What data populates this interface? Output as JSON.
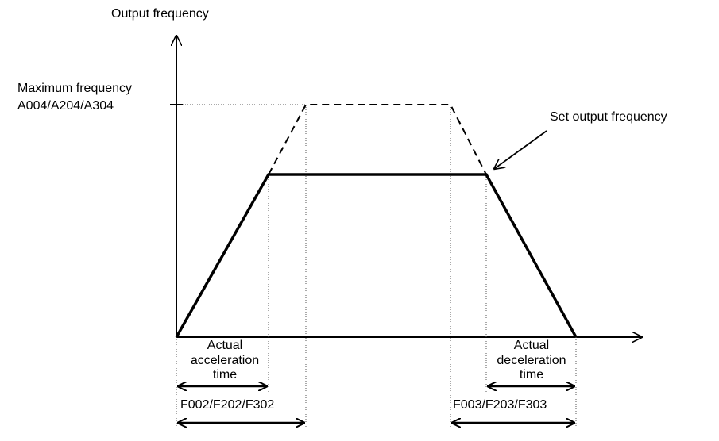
{
  "y_axis_label": "Output frequency",
  "max_frequency": {
    "lines": [
      "Maximum frequency",
      "A004/A204/A304"
    ]
  },
  "annotation": "Set output frequency",
  "acceleration_label": {
    "lines": [
      "Actual",
      "acceleration",
      "time"
    ]
  },
  "deceleration_label": {
    "lines": [
      "Actual",
      "deceleration",
      "time"
    ]
  },
  "acceleration_parameter": "F002/F202/F302",
  "deceleration_parameter": "F003/F203/F303"
}
